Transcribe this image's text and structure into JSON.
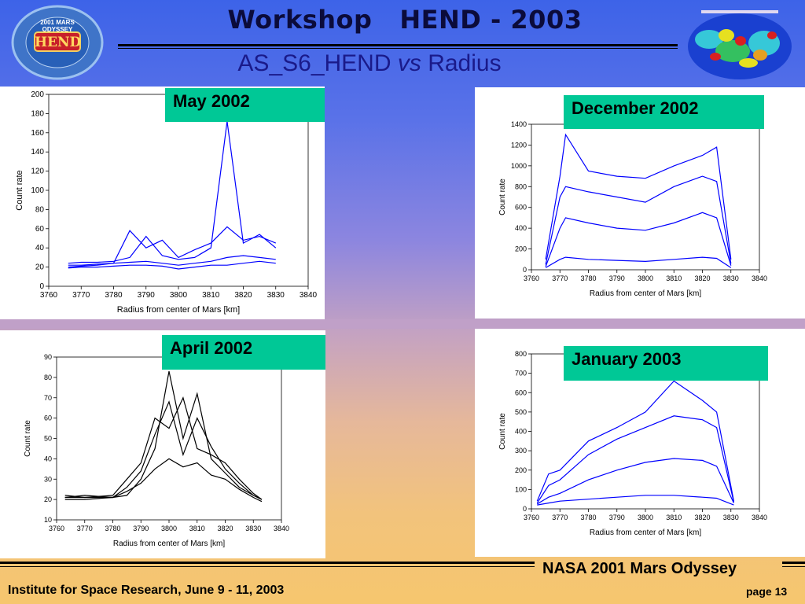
{
  "header": {
    "title": "Workshop   HEND - 2003",
    "subtitle_a": "AS_S6_HEND ",
    "subtitle_vs": "vs",
    "subtitle_b": " Radius"
  },
  "logo": {
    "center_text": "HEND",
    "top_text": "2001 MARS ODYSSEY"
  },
  "footer": {
    "mission": "NASA 2001 Mars Odyssey",
    "institute": "Institute for Space Research, June 9 - 11, 2003",
    "page": "page 13"
  },
  "colors": {
    "blue_series": "#0000ff",
    "black_series": "#000000",
    "label_bg": "#00c896"
  },
  "chart_data": [
    {
      "type": "line",
      "panel_label": "May 2002",
      "xlabel": "Radius from center of Mars [km]",
      "ylabel": "Count rate",
      "xlim": [
        3760,
        3840
      ],
      "ylim": [
        0,
        200
      ],
      "xticks": [
        3760,
        3770,
        3780,
        3790,
        3800,
        3810,
        3820,
        3830,
        3840
      ],
      "yticks": [
        0,
        20,
        40,
        60,
        80,
        100,
        120,
        140,
        160,
        180,
        200
      ],
      "series_color": "#0000ff",
      "x": [
        3766,
        3770,
        3775,
        3780,
        3785,
        3790,
        3795,
        3800,
        3805,
        3810,
        3815,
        3820,
        3825,
        3830
      ],
      "series": [
        {
          "values": [
            22,
            22,
            23,
            24,
            25,
            26,
            24,
            22,
            24,
            26,
            30,
            32,
            30,
            28
          ]
        },
        {
          "values": [
            20,
            21,
            22,
            24,
            58,
            40,
            48,
            30,
            38,
            45,
            62,
            48,
            52,
            45
          ]
        },
        {
          "values": [
            24,
            25,
            25,
            26,
            30,
            52,
            32,
            28,
            30,
            40,
            172,
            45,
            54,
            40
          ]
        },
        {
          "values": [
            19,
            20,
            20,
            21,
            22,
            22,
            21,
            18,
            20,
            22,
            22,
            24,
            26,
            24
          ]
        }
      ]
    },
    {
      "type": "line",
      "panel_label": "December 2002",
      "xlabel": "Radius from center of Mars [km]",
      "ylabel": "Count rate",
      "xlim": [
        3760,
        3840
      ],
      "ylim": [
        0,
        1400
      ],
      "xticks": [
        3760,
        3770,
        3780,
        3790,
        3800,
        3810,
        3820,
        3830,
        3840
      ],
      "yticks": [
        0,
        200,
        400,
        600,
        800,
        1000,
        1200,
        1400
      ],
      "series_color": "#0000ff",
      "x": [
        3765,
        3770,
        3772,
        3780,
        3790,
        3800,
        3810,
        3820,
        3825,
        3830
      ],
      "series": [
        {
          "values": [
            100,
            900,
            1300,
            950,
            900,
            880,
            1000,
            1100,
            1180,
            100
          ]
        },
        {
          "values": [
            50,
            700,
            800,
            750,
            700,
            650,
            800,
            900,
            850,
            60
          ]
        },
        {
          "values": [
            30,
            400,
            500,
            450,
            400,
            380,
            450,
            550,
            500,
            40
          ]
        },
        {
          "values": [
            20,
            100,
            120,
            100,
            90,
            80,
            100,
            120,
            110,
            20
          ]
        }
      ]
    },
    {
      "type": "line",
      "panel_label": "April 2002",
      "xlabel": "Radius from center of Mars [km]",
      "ylabel": "Count rate",
      "xlim": [
        3760,
        3840
      ],
      "ylim": [
        10,
        90
      ],
      "xticks": [
        3760,
        3770,
        3780,
        3790,
        3800,
        3810,
        3820,
        3830,
        3840
      ],
      "yticks": [
        10,
        20,
        30,
        40,
        50,
        60,
        70,
        80,
        90
      ],
      "series_color": "#000000",
      "x": [
        3763,
        3770,
        3780,
        3785,
        3790,
        3795,
        3800,
        3805,
        3810,
        3815,
        3820,
        3825,
        3830,
        3833
      ],
      "series": [
        {
          "values": [
            21,
            21,
            21,
            22,
            30,
            45,
            83,
            50,
            72,
            40,
            33,
            26,
            22,
            20
          ]
        },
        {
          "values": [
            22,
            21,
            22,
            30,
            38,
            60,
            55,
            70,
            45,
            42,
            38,
            30,
            23,
            20
          ]
        },
        {
          "values": [
            20,
            20,
            21,
            24,
            28,
            35,
            40,
            36,
            38,
            32,
            30,
            25,
            21,
            19
          ]
        },
        {
          "values": [
            21,
            22,
            21,
            26,
            34,
            52,
            68,
            42,
            60,
            46,
            35,
            28,
            22,
            20
          ]
        }
      ]
    },
    {
      "type": "line",
      "panel_label": "January 2003",
      "xlabel": "Radius from center of Mars [km]",
      "ylabel": "Count rate",
      "xlim": [
        3760,
        3840
      ],
      "ylim": [
        0,
        800
      ],
      "xticks": [
        3760,
        3770,
        3780,
        3790,
        3800,
        3810,
        3820,
        3830,
        3840
      ],
      "yticks": [
        0,
        100,
        200,
        300,
        400,
        500,
        600,
        700,
        800
      ],
      "series_color": "#0000ff",
      "x": [
        3762,
        3766,
        3770,
        3780,
        3790,
        3800,
        3810,
        3820,
        3825,
        3831
      ],
      "series": [
        {
          "values": [
            40,
            180,
            200,
            350,
            420,
            500,
            660,
            560,
            500,
            40
          ]
        },
        {
          "values": [
            30,
            120,
            150,
            280,
            360,
            420,
            480,
            460,
            420,
            35
          ]
        },
        {
          "values": [
            25,
            60,
            80,
            150,
            200,
            240,
            260,
            250,
            220,
            30
          ]
        },
        {
          "values": [
            20,
            30,
            40,
            50,
            60,
            70,
            70,
            60,
            55,
            20
          ]
        }
      ]
    }
  ]
}
